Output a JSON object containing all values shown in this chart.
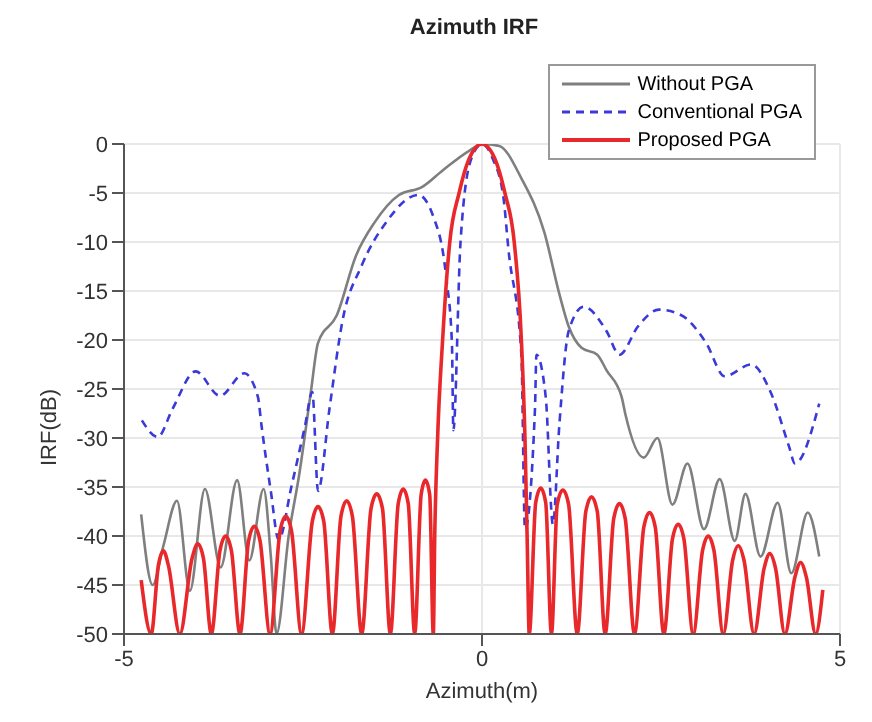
{
  "chart_data": {
    "type": "line",
    "title": "Azimuth IRF",
    "xlabel": "Azimuth(m)",
    "ylabel": "IRF(dB)",
    "xlim": [
      -5,
      5
    ],
    "xticks": [
      -5,
      0,
      5
    ],
    "ylim": [
      -50,
      0
    ],
    "yticks": [
      -50,
      -45,
      -40,
      -35,
      -30,
      -25,
      -20,
      -15,
      -10,
      -5,
      0
    ],
    "grid": true,
    "legend": "top right",
    "series": [
      {
        "name": "Without PGA",
        "color": "#7f7f7f",
        "line_style": "solid",
        "x": [
          -4.76,
          -4.6,
          -4.45,
          -4.26,
          -4.08,
          -3.87,
          -3.65,
          -3.42,
          -3.25,
          -3.05,
          -2.95,
          -2.87,
          -2.7,
          -2.55,
          -2.39,
          -2.29,
          -2.03,
          -1.76,
          -1.5,
          -1.16,
          -0.84,
          -0.55,
          -0.18,
          0,
          0.24,
          0.55,
          0.87,
          1.08,
          1.21,
          1.39,
          1.61,
          1.74,
          1.95,
          2.0,
          2.26,
          2.45,
          2.66,
          2.87,
          3.1,
          3.32,
          3.53,
          3.68,
          3.89,
          4.13,
          4.32,
          4.55,
          4.71
        ],
        "values": [
          -37.8,
          -45,
          -41,
          -36.4,
          -45.6,
          -35.2,
          -43.2,
          -34.3,
          -42.5,
          -35.2,
          -42,
          -50,
          -40,
          -33.6,
          -25.3,
          -20.3,
          -17.5,
          -11.4,
          -8,
          -5.2,
          -4.4,
          -2.7,
          -0.7,
          0,
          -0.2,
          -3.5,
          -9,
          -15.3,
          -18.6,
          -20.8,
          -21.5,
          -23.1,
          -25.8,
          -27.5,
          -32,
          -30,
          -36.8,
          -32.6,
          -39.3,
          -34.2,
          -40.5,
          -35.7,
          -42.1,
          -36.6,
          -43.8,
          -37.6,
          -42.1
        ]
      },
      {
        "name": "Conventional PGA",
        "color": "#3a3ad8",
        "line_style": "dashed",
        "x": [
          -4.75,
          -4.53,
          -4.32,
          -4.0,
          -3.66,
          -3.32,
          -3.13,
          -3.08,
          -2.95,
          -2.84,
          -2.66,
          -2.47,
          -2.37,
          -2.29,
          -2.13,
          -1.95,
          -1.68,
          -1.34,
          -0.89,
          -0.68,
          -0.5,
          -0.42,
          -0.4,
          -0.3,
          -0.15,
          0,
          0.15,
          0.3,
          0.37,
          0.55,
          0.6,
          0.74,
          0.76,
          0.89,
          0.99,
          1.08,
          1.21,
          1.42,
          1.74,
          1.92,
          2.18,
          2.47,
          2.79,
          3.13,
          3.39,
          3.76,
          4.03,
          4.29,
          4.37,
          4.71
        ],
        "values": [
          -28.2,
          -29.9,
          -27,
          -23.2,
          -25.7,
          -23.4,
          -25.8,
          -28.7,
          -35.4,
          -40.4,
          -34.9,
          -28.7,
          -25.3,
          -35.4,
          -27,
          -18.1,
          -12.4,
          -8,
          -5.2,
          -7.4,
          -13.6,
          -20.3,
          -29.2,
          -10,
          -1.5,
          0,
          -1.5,
          -5.5,
          -10.8,
          -21.5,
          -39.3,
          -27,
          -21.5,
          -25.8,
          -38.8,
          -28.7,
          -19.1,
          -16.6,
          -19.1,
          -21.5,
          -18.6,
          -16.9,
          -17.5,
          -20.3,
          -23.7,
          -22.5,
          -25.3,
          -30.9,
          -32.6,
          -26.5
        ]
      },
      {
        "name": "Proposed PGA",
        "color": "#e8282a",
        "line_style": "solid",
        "x": [
          -4.76,
          -4.62,
          -4.52,
          -4.45,
          -4.38,
          -4.22,
          -4.05,
          -3.97,
          -3.89,
          -3.78,
          -3.66,
          -3.58,
          -3.5,
          -3.38,
          -3.26,
          -3.18,
          -3.1,
          -2.96,
          -2.82,
          -2.74,
          -2.66,
          -2.52,
          -2.37,
          -2.29,
          -2.21,
          -2.09,
          -1.97,
          -1.89,
          -1.81,
          -1.68,
          -1.55,
          -1.47,
          -1.39,
          -1.28,
          -1.17,
          -1.1,
          -1.03,
          -0.94,
          -0.85,
          -0.79,
          -0.73,
          -0.68,
          -0.66,
          -0.62,
          -0.55,
          -0.45,
          -0.32,
          -0.18,
          0,
          0.18,
          0.32,
          0.45,
          0.55,
          0.6,
          0.63,
          0.66,
          0.75,
          0.82,
          0.89,
          0.97,
          1.05,
          1.13,
          1.21,
          1.33,
          1.45,
          1.53,
          1.61,
          1.72,
          1.84,
          1.92,
          2.0,
          2.13,
          2.26,
          2.34,
          2.42,
          2.54,
          2.66,
          2.74,
          2.82,
          2.95,
          3.08,
          3.16,
          3.24,
          3.37,
          3.5,
          3.58,
          3.66,
          3.8,
          3.94,
          4.02,
          4.1,
          4.23,
          4.37,
          4.45,
          4.53,
          4.66,
          4.76
        ],
        "values": [
          -44.5,
          -50,
          -43,
          -41.5,
          -43,
          -50,
          -42.3,
          -40.8,
          -42.3,
          -50,
          -41.5,
          -40,
          -41.5,
          -50,
          -40.5,
          -39,
          -40.5,
          -50,
          -39.5,
          -38,
          -39.5,
          -50,
          -38.5,
          -37,
          -38.5,
          -50,
          -38,
          -36.4,
          -38,
          -50,
          -37.2,
          -35.7,
          -37.2,
          -50,
          -36.7,
          -35.2,
          -36.7,
          -50,
          -35.8,
          -34.3,
          -35.8,
          -50,
          -40,
          -30,
          -20,
          -10,
          -5,
          -1.5,
          0,
          -1.5,
          -5,
          -10,
          -20,
          -30,
          -40,
          -50,
          -36.6,
          -35.1,
          -36.6,
          -50,
          -36.8,
          -35.3,
          -36.8,
          -50,
          -37.5,
          -36,
          -37.5,
          -50,
          -38.2,
          -36.7,
          -38.2,
          -50,
          -39.1,
          -37.6,
          -39.1,
          -50,
          -40.3,
          -38.8,
          -40.3,
          -50,
          -41.5,
          -40,
          -41.5,
          -50,
          -42.5,
          -41,
          -42.5,
          -50,
          -43.3,
          -41.8,
          -43.3,
          -50,
          -44.2,
          -42.7,
          -44.2,
          -50,
          -45.5
        ]
      }
    ]
  }
}
